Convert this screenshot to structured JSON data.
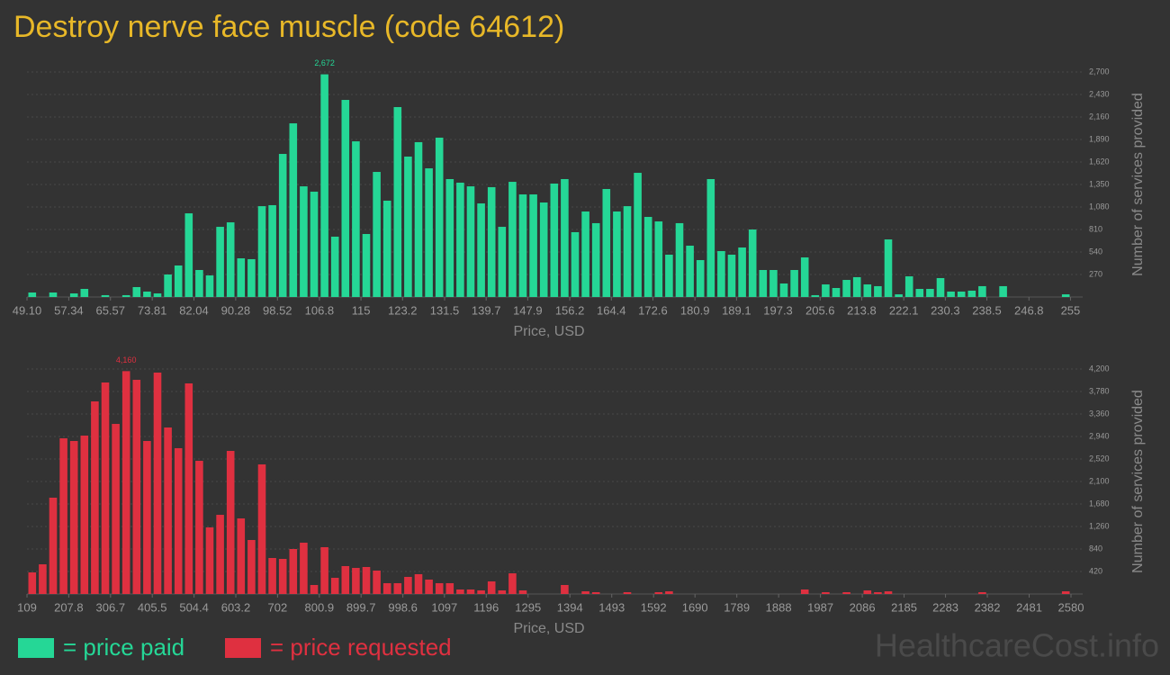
{
  "title": "Destroy nerve face muscle (code 64612)",
  "watermark": "HealthcareCost.info",
  "chart_data": [
    {
      "type": "histogram",
      "xlabel": "Price, USD",
      "ylabel": "Number of services provided",
      "grid": true,
      "bins": [
        49.1,
        51.16,
        53.22,
        55.28,
        57.34,
        59.4,
        61.46,
        63.52,
        65.58,
        67.64,
        69.7,
        71.76,
        73.82,
        75.88,
        77.94,
        80,
        82.06,
        84.12,
        86.18,
        88.24,
        90.3,
        92.36,
        94.42,
        96.48,
        98.54,
        100.6,
        102.66,
        104.72,
        106.78,
        108.84,
        110.9,
        112.96,
        115.02,
        117.08,
        119.14,
        121.2,
        123.26,
        125.32,
        127.38,
        129.44,
        131.5,
        133.56,
        135.62,
        137.68,
        139.74,
        141.8,
        143.86,
        145.92,
        147.98,
        150.04,
        152.1,
        154.16,
        156.22,
        158.28,
        160.34,
        162.4,
        164.46,
        166.52,
        168.58,
        170.64,
        172.7,
        174.76,
        176.82,
        178.88,
        180.94,
        183,
        185.06,
        187.12,
        189.18,
        191.24,
        193.3,
        195.36,
        197.42,
        199.48,
        201.54,
        203.6,
        205.66,
        207.72,
        209.78,
        211.84,
        213.9,
        215.96,
        218.02,
        220.08,
        222.14,
        224.2,
        226.26,
        228.32,
        230.38,
        232.44,
        234.5,
        236.56,
        238.62,
        240.68,
        242.74,
        244.8,
        246.86,
        248.92,
        250.98,
        253.04,
        255.1
      ],
      "series": [
        {
          "name": "= price paid",
          "color": "#25d796",
          "values": [
            54,
            0,
            54,
            0,
            43,
            97,
            0,
            22,
            0,
            22,
            119,
            65,
            43,
            270,
            378,
            1004,
            324,
            259,
            842,
            896,
            464,
            454,
            1090,
            1102,
            1717,
            2084,
            1328,
            1264,
            2672,
            724,
            2365,
            1868,
            756,
            1501,
            1156,
            2279,
            1685,
            1858,
            1544,
            1912,
            1415,
            1372,
            1328,
            1123,
            1318,
            842,
            1382,
            1231,
            1231,
            1134,
            1361,
            1415,
            778,
            1026,
            886,
            1296,
            1026,
            1090,
            1490,
            961,
            907,
            508,
            886,
            616,
            443,
            1415,
            551,
            508,
            594,
            810,
            324,
            324,
            162,
            324,
            475,
            22,
            151,
            108,
            205,
            238,
            151,
            130,
            691,
            32,
            248,
            97,
            97,
            227,
            65,
            65,
            76,
            130,
            0,
            130,
            0,
            0,
            0,
            0,
            0,
            32
          ],
          "value_labels": [
            null,
            null,
            null,
            null,
            null,
            null,
            null,
            null,
            null,
            null,
            null,
            null,
            null,
            null,
            null,
            null,
            null,
            null,
            null,
            null,
            null,
            null,
            null,
            null,
            null,
            null,
            null,
            null,
            "2,672",
            null,
            null,
            null,
            null,
            null,
            null,
            null,
            null,
            null,
            null,
            null,
            null,
            null,
            null,
            null,
            null,
            null,
            null,
            null,
            null,
            null,
            null,
            null,
            null,
            null,
            null,
            null,
            null,
            null,
            null,
            null,
            null,
            null,
            null,
            null,
            null,
            null,
            null,
            null,
            null,
            null,
            null,
            null,
            null,
            null,
            null,
            null,
            null,
            null,
            null,
            null,
            null,
            null,
            null,
            null,
            null,
            null,
            null,
            null,
            null,
            null,
            null,
            null,
            null,
            null,
            null,
            null,
            null,
            null,
            null,
            null
          ]
        }
      ],
      "xlim": [
        49.1,
        255.1
      ],
      "xticks": [
        {
          "value": 49.1,
          "label": "49.10"
        },
        57.34,
        65.57,
        73.81,
        82.04,
        90.28,
        98.52,
        106.8,
        115,
        123.2,
        131.5,
        139.7,
        147.9,
        156.2,
        164.4,
        172.6,
        180.9,
        189.1,
        197.3,
        205.6,
        213.8,
        222.1,
        230.3,
        238.5,
        246.8,
        255
      ],
      "ylim": [
        0,
        2700
      ],
      "yticks": [
        270,
        540,
        810,
        {
          "value": 1080,
          "label": "1,080"
        },
        {
          "value": 1350,
          "label": "1,350"
        },
        {
          "value": 1620,
          "label": "1,620"
        },
        {
          "value": 1890,
          "label": "1,890"
        },
        {
          "value": 2160,
          "label": "2,160"
        },
        {
          "value": 2430,
          "label": "2,430"
        },
        {
          "value": 2700,
          "label": "2,700"
        }
      ]
    },
    {
      "type": "histogram",
      "xlabel": "Price, USD",
      "ylabel": "Number of services provided",
      "grid": true,
      "bins": [
        109,
        133.71,
        158.42,
        183.13,
        207.84,
        232.55,
        257.26,
        281.97,
        306.68,
        331.39,
        356.1,
        380.81,
        405.52,
        430.23,
        454.94,
        479.65,
        504.36,
        529.07,
        553.78,
        578.49,
        603.2,
        627.91,
        652.62,
        677.33,
        702.04,
        726.75,
        751.46,
        776.17,
        800.88,
        825.59,
        850.3,
        875.01,
        899.72,
        924.43,
        949.14,
        973.85,
        998.56,
        1023.27,
        1047.98,
        1072.69,
        1097.4,
        1122.11,
        1146.82,
        1171.53,
        1196.24,
        1220.95,
        1245.66,
        1270.37,
        1295.08,
        1319.79,
        1344.5,
        1369.21,
        1393.92,
        1418.63,
        1443.34,
        1468.05,
        1492.76,
        1517.47,
        1542.18,
        1566.89,
        1591.6,
        1616.31,
        1641.02,
        1665.73,
        1690.44,
        1715.15,
        1739.86,
        1764.57,
        1789.28,
        1813.99,
        1838.7,
        1863.41,
        1888.12,
        1912.83,
        1937.54,
        1962.25,
        1986.96,
        2011.67,
        2036.38,
        2061.09,
        2085.8,
        2110.51,
        2135.22,
        2159.93,
        2184.64,
        2209.35,
        2234.06,
        2258.77,
        2283.48,
        2308.19,
        2332.9,
        2357.61,
        2382.32,
        2407.03,
        2431.74,
        2456.45,
        2481.16,
        2505.87,
        2530.58,
        2555.29,
        2580
      ],
      "series": [
        {
          "name": "= price requested",
          "color": "#df3040",
          "values": [
            403,
            554,
            1798,
            2906,
            2856,
            2957,
            3595,
            3948,
            3175,
            4160,
            3998,
            2856,
            4133,
            3108,
            2722,
            3931,
            2486,
            1243,
            1478,
            2671,
            1411,
            1008,
            2419,
            672,
            655,
            840,
            958,
            168,
            874,
            302,
            521,
            487,
            504,
            437,
            202,
            202,
            319,
            370,
            269,
            202,
            202,
            84,
            84,
            67,
            235,
            67,
            386,
            67,
            0,
            0,
            0,
            168,
            0,
            50,
            34,
            0,
            0,
            34,
            0,
            0,
            34,
            50,
            0,
            0,
            0,
            0,
            0,
            0,
            0,
            0,
            0,
            0,
            0,
            0,
            84,
            0,
            34,
            0,
            34,
            0,
            67,
            34,
            50,
            0,
            0,
            0,
            0,
            0,
            0,
            0,
            0,
            34,
            0,
            0,
            0,
            0,
            0,
            0,
            0,
            50
          ],
          "value_labels": [
            null,
            null,
            null,
            null,
            null,
            null,
            null,
            null,
            null,
            "4,160",
            null,
            null,
            null,
            null,
            null,
            null,
            null,
            null,
            null,
            null,
            null,
            null,
            null,
            null,
            null,
            null,
            null,
            null,
            null,
            null,
            null,
            null,
            null,
            null,
            null,
            null,
            null,
            null,
            null,
            null,
            null,
            null,
            null,
            null,
            null,
            null,
            null,
            null,
            null,
            null,
            null,
            null,
            null,
            null,
            null,
            null,
            null,
            null,
            null,
            null,
            null,
            null,
            null,
            null,
            null,
            null,
            null,
            null,
            null,
            null,
            null,
            null,
            null,
            null,
            null,
            null,
            null,
            null,
            null,
            null,
            null,
            null,
            null,
            null,
            null,
            null,
            null,
            null,
            null,
            null,
            null,
            null,
            null,
            null,
            null,
            null,
            null,
            null,
            null,
            null
          ]
        }
      ],
      "xlim": [
        109,
        2580
      ],
      "xticks": [
        109,
        207.8,
        306.7,
        405.5,
        504.4,
        603.2,
        702,
        800.9,
        899.7,
        998.6,
        1097,
        1196,
        1295,
        1394,
        1493,
        1592,
        1690,
        1789,
        1888,
        1987,
        2086,
        2185,
        2283,
        2382,
        2481,
        2580
      ],
      "ylim": [
        0,
        4200
      ],
      "yticks": [
        420,
        840,
        {
          "value": 1260,
          "label": "1,260"
        },
        {
          "value": 1680,
          "label": "1,680"
        },
        {
          "value": 2100,
          "label": "2,100"
        },
        {
          "value": 2520,
          "label": "2,520"
        },
        {
          "value": 2940,
          "label": "2,940"
        },
        {
          "value": 3360,
          "label": "3,360"
        },
        {
          "value": 3780,
          "label": "3,780"
        },
        {
          "value": 4200,
          "label": "4,200"
        }
      ]
    }
  ]
}
